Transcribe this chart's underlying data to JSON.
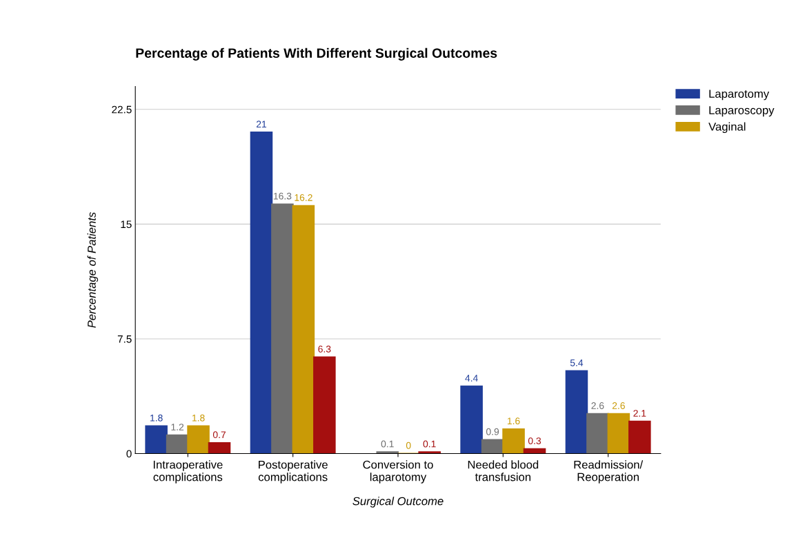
{
  "chart_data": {
    "type": "bar",
    "title": "Percentage of Patients With Different Surgical Outcomes",
    "xlabel": "Surgical Outcome",
    "ylabel": "Percentage of Patients",
    "categories": [
      "Intraoperative\ncomplications",
      "Postoperative\ncomplications",
      "Conversion to\nlaparotomy",
      "Needed blood\ntransfusion",
      "Readmission/\nReoperation"
    ],
    "series": [
      {
        "name": "Laparotomy",
        "color": "#1f3d99",
        "values": [
          1.8,
          21,
          null,
          4.4,
          5.4
        ]
      },
      {
        "name": "Laparoscopy",
        "color": "#6e6e6e",
        "values": [
          1.2,
          16.3,
          0.1,
          0.9,
          2.6
        ]
      },
      {
        "name": "Vaginal",
        "color": "#c99a06",
        "values": [
          1.8,
          16.2,
          0,
          1.6,
          2.6
        ]
      },
      {
        "color": "#a50f0f",
        "values": [
          0.7,
          6.3,
          0.1,
          0.3,
          2.1
        ]
      }
    ],
    "ylim": [
      0,
      24
    ],
    "yticks": [
      0,
      7.5,
      15,
      22.5
    ],
    "grid": "y",
    "legend": "top right",
    "data_labels": true
  }
}
